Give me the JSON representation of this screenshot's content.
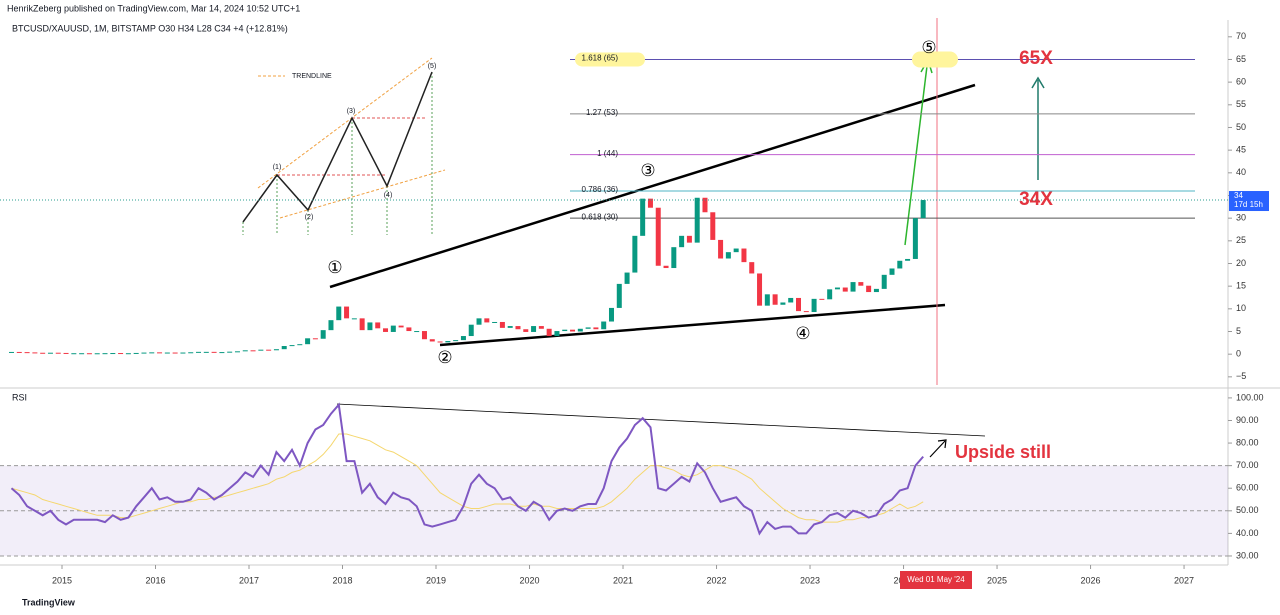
{
  "chart_data": {
    "type": "candlestick",
    "header": "HenrikZeberg published on TradingView.com, Mar 14, 2024 10:52 UTC+1",
    "title": "BTCUSD/XAUUSD, 1M, BITSTAMP  O30  H34  L28  C34  +4 (+12.81%)",
    "values": [
      0.49,
      0.45,
      0.39,
      0.31,
      0.28,
      0.32,
      0.27,
      0.18,
      0.21,
      0.21,
      0.19,
      0.2,
      0.22,
      0.25,
      0.21,
      0.21,
      0.27,
      0.35,
      0.4,
      0.33,
      0.36,
      0.33,
      0.36,
      0.42,
      0.51,
      0.51,
      0.43,
      0.46,
      0.55,
      0.63,
      0.85,
      0.8,
      0.99,
      0.86,
      1.1,
      1.8,
      2.0,
      2.2,
      3.5,
      3.4,
      5.3,
      7.5,
      10.5,
      7.9,
      7.9,
      5.3,
      7.0,
      5.7,
      4.9,
      6.3,
      5.9,
      5.1,
      5.1,
      3.3,
      2.8,
      2.6,
      2.9,
      3.1,
      4.0,
      6.5,
      7.9,
      7.0,
      7.1,
      5.8,
      6.2,
      5.5,
      4.9,
      6.2,
      5.6,
      4.0,
      5.1,
      5.4,
      5.0,
      5.6,
      5.9,
      5.5,
      7.2,
      10.2,
      15.5,
      18.0,
      26.1,
      34.3,
      32.3,
      19.5,
      19.0,
      23.6,
      26.1,
      24.6,
      34.5,
      31.3,
      25.2,
      21.1,
      22.5,
      23.3,
      20.3,
      17.8,
      10.7,
      13.2,
      10.9,
      11.4,
      12.4,
      9.5,
      9.3,
      12.2,
      12.1,
      14.3,
      14.7,
      13.8,
      15.9,
      15.1,
      13.7,
      14.4,
      17.5,
      18.9,
      20.6,
      21.0,
      30.0,
      34.0
    ],
    "up_color": "#089981",
    "down_color": "#f23645",
    "ylim": [
      -6.8,
      71.5
    ],
    "yticks": [
      {
        "value": -5,
        "label": "−5"
      },
      0,
      5,
      10,
      15,
      20,
      25,
      30,
      35,
      40,
      45,
      50,
      55,
      60,
      65,
      70
    ],
    "xlim": [
      2014.337,
      2027.47
    ],
    "xticks": [
      2015,
      2016,
      2017,
      2018,
      2019,
      2020,
      2021,
      2022,
      2023,
      2024,
      2025,
      2026,
      2027
    ],
    "fib_levels": [
      {
        "value": 65,
        "label": "1.618 (65)",
        "color": "#5b4fb0"
      },
      {
        "value": 53,
        "label": "1.27 (53)",
        "color": "#888888"
      },
      {
        "value": 44,
        "label": "1 (44)",
        "color": "#c05fd0"
      },
      {
        "value": 36,
        "label": "0.786 (36)",
        "color": "#4fb6c6"
      },
      {
        "value": 30,
        "label": "0.618 (30)",
        "color": "#555555"
      }
    ],
    "countdown": "17d 15h",
    "crosshair_date": "Wed 01 May '24",
    "waves": [
      "①",
      "②",
      "③",
      "④",
      "⑤"
    ],
    "inset_labels": [
      "(1)",
      "(2)",
      "(3)",
      "(4)",
      "(5)"
    ],
    "inset_legend": "TRENDLINE",
    "annotations": [
      "65X",
      "34X",
      "Upside still"
    ],
    "rsi": {
      "title": "RSI",
      "color": "#7e57c2",
      "ma_color": "#f5d76e",
      "values": [
        60,
        57,
        52,
        50,
        48,
        50,
        46,
        44,
        46,
        46,
        46,
        46,
        45,
        48,
        46,
        47,
        52,
        56,
        60,
        55,
        56,
        54,
        54,
        55,
        60,
        58,
        55,
        57,
        60,
        63,
        67,
        65,
        70,
        66,
        76,
        72,
        77,
        70,
        80,
        86,
        88,
        93,
        97,
        72,
        72,
        58,
        62,
        56,
        53,
        58,
        56,
        55,
        52,
        44,
        43,
        44,
        45,
        46,
        52,
        62,
        66,
        62,
        60,
        55,
        56,
        52,
        50,
        54,
        52,
        46,
        50,
        51,
        50,
        52,
        53,
        53,
        60,
        72,
        78,
        82,
        88,
        91,
        87,
        60,
        59,
        62,
        65,
        63,
        71,
        67,
        60,
        54,
        55,
        56,
        52,
        50,
        40,
        45,
        42,
        43,
        43,
        40,
        40,
        44,
        45,
        48,
        49,
        47,
        50,
        49,
        47,
        48,
        53,
        55,
        59,
        60,
        70,
        74
      ],
      "ma_values": [
        60,
        59,
        58,
        57,
        55,
        54,
        53,
        52,
        51,
        50,
        49,
        48,
        48,
        48,
        47,
        47,
        48,
        49,
        50,
        51,
        52,
        53,
        54,
        54,
        55,
        55,
        56,
        56,
        57,
        58,
        59,
        60,
        61,
        62,
        64,
        65,
        67,
        68,
        70,
        72,
        75,
        79,
        84,
        84,
        83,
        82,
        81,
        79,
        77,
        76,
        74,
        72,
        70,
        66,
        62,
        58,
        56,
        54,
        52,
        51,
        51,
        52,
        53,
        53,
        53,
        52,
        52,
        53,
        52,
        52,
        51,
        51,
        51,
        51,
        51,
        51,
        52,
        54,
        57,
        60,
        64,
        67,
        70,
        70,
        69,
        68,
        66,
        65,
        66,
        68,
        70,
        70,
        69,
        68,
        66,
        64,
        60,
        57,
        54,
        51,
        49,
        47,
        46,
        46,
        45,
        45,
        45,
        46,
        46,
        47,
        47,
        48,
        49,
        51,
        53,
        51,
        52,
        54
      ],
      "ylim": [
        26,
        103.5
      ],
      "yticks": [
        {
          "value": 30,
          "label": "30.00"
        },
        {
          "value": 40,
          "label": "40.00"
        },
        {
          "value": 50,
          "label": "50.00"
        },
        {
          "value": 60,
          "label": "60.00"
        },
        {
          "value": 70,
          "label": "70.00"
        },
        {
          "value": 80,
          "label": "80.00"
        },
        {
          "value": 90,
          "label": "90.00"
        },
        {
          "value": 100,
          "label": "100.00"
        }
      ],
      "band": [
        30,
        70
      ],
      "dashed_levels": [
        30,
        50,
        70
      ]
    },
    "footer": "TradingView"
  }
}
